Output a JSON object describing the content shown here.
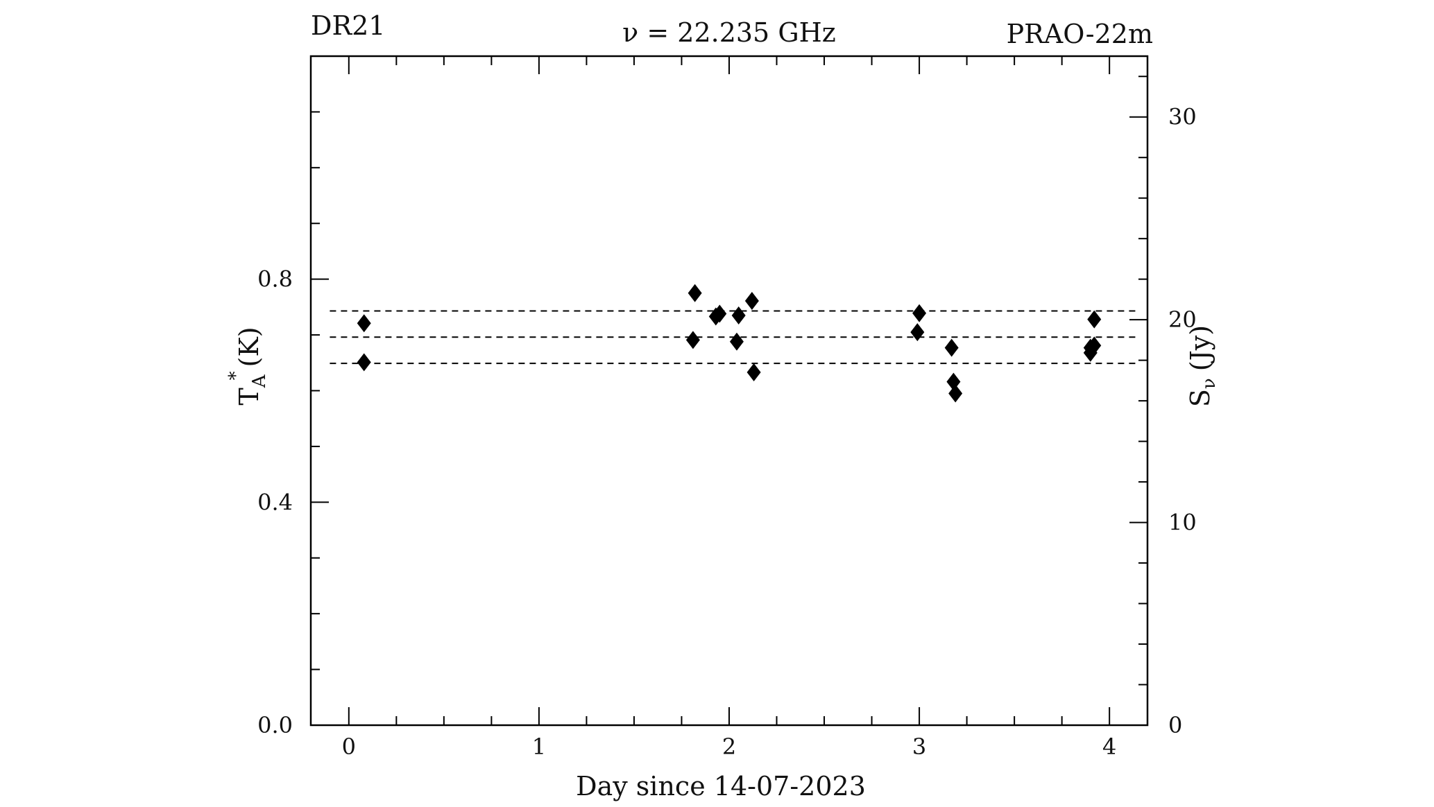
{
  "chart_data": {
    "type": "scatter",
    "title_left": "DR21",
    "title_center": "ν = 22.235 GHz",
    "title_right": "PRAO-22m",
    "xlabel": "Day since 14-07-2023",
    "ylabel": {
      "main": "T",
      "subscript": "A",
      "superscript": "*",
      "unit": "(K)"
    },
    "y2label": {
      "main": "S",
      "subscript": "ν",
      "unit": "(Jy)"
    },
    "xlim": [
      -0.2,
      4.2
    ],
    "ylim": [
      0.0,
      1.2
    ],
    "y2lim": [
      0,
      33
    ],
    "xticks": [
      0,
      1,
      2,
      3,
      4
    ],
    "xtick_labels": [
      "0",
      "1",
      "2",
      "3",
      "4"
    ],
    "yticks": [
      0.0,
      0.4,
      0.8
    ],
    "ytick_labels": [
      "0.0",
      "0.4",
      "0.8"
    ],
    "y2ticks": [
      0,
      10,
      20,
      30
    ],
    "y2tick_labels": [
      "0",
      "10",
      "20",
      "30"
    ],
    "reference_lines": [
      0.743,
      0.696,
      0.649
    ],
    "marker": "diamond",
    "marker_color": "#000000",
    "points": [
      {
        "x": 0.08,
        "y": 0.721
      },
      {
        "x": 0.08,
        "y": 0.651
      },
      {
        "x": 1.82,
        "y": 0.775
      },
      {
        "x": 1.81,
        "y": 0.691
      },
      {
        "x": 1.93,
        "y": 0.733
      },
      {
        "x": 1.95,
        "y": 0.738
      },
      {
        "x": 2.05,
        "y": 0.735
      },
      {
        "x": 2.04,
        "y": 0.688
      },
      {
        "x": 2.12,
        "y": 0.761
      },
      {
        "x": 2.13,
        "y": 0.633
      },
      {
        "x": 2.99,
        "y": 0.705
      },
      {
        "x": 3.0,
        "y": 0.739
      },
      {
        "x": 3.17,
        "y": 0.677
      },
      {
        "x": 3.18,
        "y": 0.616
      },
      {
        "x": 3.19,
        "y": 0.595
      },
      {
        "x": 3.9,
        "y": 0.668
      },
      {
        "x": 3.9,
        "y": 0.677
      },
      {
        "x": 3.92,
        "y": 0.681
      },
      {
        "x": 3.92,
        "y": 0.728
      }
    ]
  }
}
